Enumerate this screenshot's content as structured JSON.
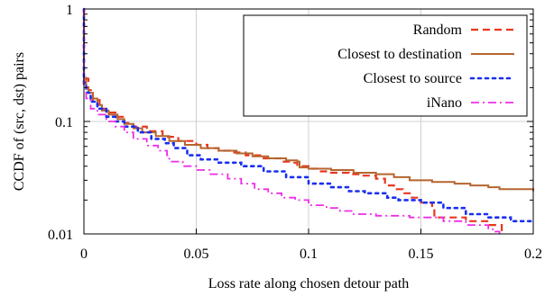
{
  "chart_data": {
    "type": "line",
    "xlabel": "Loss rate along chosen detour path",
    "ylabel": "CCDF of (src, dst) pairs",
    "xlim": [
      0,
      0.2
    ],
    "ylim": [
      0.01,
      1
    ],
    "yscale": "log",
    "grid": true,
    "legend_position": "top-right",
    "x_ticks": [
      {
        "value": 0,
        "label": "0"
      },
      {
        "value": 0.05,
        "label": "0.05"
      },
      {
        "value": 0.1,
        "label": "0.1"
      },
      {
        "value": 0.15,
        "label": "0.15"
      },
      {
        "value": 0.2,
        "label": "0.2"
      }
    ],
    "y_ticks": [
      {
        "value": 0.01,
        "label": "0.01"
      },
      {
        "value": 0.1,
        "label": "0.1"
      },
      {
        "value": 1,
        "label": "1"
      }
    ],
    "series": [
      {
        "name": "Random",
        "color": "#e8371e",
        "dash": "dashed",
        "points": [
          [
            0,
            1
          ],
          [
            0,
            0.26
          ],
          [
            0.001,
            0.24
          ],
          [
            0.002,
            0.19
          ],
          [
            0.004,
            0.155
          ],
          [
            0.007,
            0.13
          ],
          [
            0.01,
            0.12
          ],
          [
            0.014,
            0.11
          ],
          [
            0.018,
            0.097
          ],
          [
            0.022,
            0.09
          ],
          [
            0.028,
            0.082
          ],
          [
            0.035,
            0.073
          ],
          [
            0.042,
            0.067
          ],
          [
            0.05,
            0.062
          ],
          [
            0.055,
            0.058
          ],
          [
            0.06,
            0.055
          ],
          [
            0.066,
            0.053
          ],
          [
            0.072,
            0.05
          ],
          [
            0.08,
            0.047
          ],
          [
            0.088,
            0.044
          ],
          [
            0.092,
            0.043
          ],
          [
            0.095,
            0.04
          ],
          [
            0.1,
            0.038
          ],
          [
            0.104,
            0.036
          ],
          [
            0.11,
            0.035
          ],
          [
            0.118,
            0.034
          ],
          [
            0.124,
            0.033
          ],
          [
            0.13,
            0.031
          ],
          [
            0.134,
            0.027
          ],
          [
            0.138,
            0.025
          ],
          [
            0.142,
            0.023
          ],
          [
            0.146,
            0.021
          ],
          [
            0.15,
            0.019
          ],
          [
            0.155,
            0.017
          ],
          [
            0.156,
            0.014
          ],
          [
            0.162,
            0.014
          ],
          [
            0.17,
            0.013
          ],
          [
            0.18,
            0.012
          ],
          [
            0.186,
            0.01
          ]
        ]
      },
      {
        "name": "Closest to destination",
        "color": "#b5652f",
        "dash": "solid",
        "points": [
          [
            0,
            1
          ],
          [
            0,
            0.24
          ],
          [
            0.001,
            0.2
          ],
          [
            0.002,
            0.18
          ],
          [
            0.004,
            0.16
          ],
          [
            0.006,
            0.14
          ],
          [
            0.008,
            0.125
          ],
          [
            0.011,
            0.115
          ],
          [
            0.015,
            0.105
          ],
          [
            0.018,
            0.095
          ],
          [
            0.022,
            0.087
          ],
          [
            0.026,
            0.08
          ],
          [
            0.032,
            0.074
          ],
          [
            0.038,
            0.067
          ],
          [
            0.045,
            0.062
          ],
          [
            0.052,
            0.058
          ],
          [
            0.06,
            0.055
          ],
          [
            0.068,
            0.052
          ],
          [
            0.075,
            0.049
          ],
          [
            0.082,
            0.047
          ],
          [
            0.09,
            0.045
          ],
          [
            0.095,
            0.044
          ],
          [
            0.096,
            0.039
          ],
          [
            0.1,
            0.038
          ],
          [
            0.11,
            0.037
          ],
          [
            0.12,
            0.035
          ],
          [
            0.13,
            0.034
          ],
          [
            0.138,
            0.032
          ],
          [
            0.145,
            0.03
          ],
          [
            0.155,
            0.029
          ],
          [
            0.165,
            0.028
          ],
          [
            0.172,
            0.027
          ],
          [
            0.18,
            0.026
          ],
          [
            0.185,
            0.025
          ],
          [
            0.2,
            0.024
          ]
        ]
      },
      {
        "name": "Closest to source",
        "color": "#1a2ff0",
        "dash": "dotted",
        "points": [
          [
            0,
            1
          ],
          [
            0,
            0.22
          ],
          [
            0.001,
            0.18
          ],
          [
            0.003,
            0.15
          ],
          [
            0.006,
            0.13
          ],
          [
            0.01,
            0.11
          ],
          [
            0.014,
            0.1
          ],
          [
            0.018,
            0.09
          ],
          [
            0.024,
            0.08
          ],
          [
            0.03,
            0.07
          ],
          [
            0.036,
            0.064
          ],
          [
            0.04,
            0.058
          ],
          [
            0.046,
            0.05
          ],
          [
            0.052,
            0.046
          ],
          [
            0.06,
            0.043
          ],
          [
            0.07,
            0.04
          ],
          [
            0.08,
            0.036
          ],
          [
            0.09,
            0.032
          ],
          [
            0.1,
            0.028
          ],
          [
            0.11,
            0.026
          ],
          [
            0.118,
            0.024
          ],
          [
            0.125,
            0.023
          ],
          [
            0.135,
            0.021
          ],
          [
            0.14,
            0.02
          ],
          [
            0.15,
            0.019
          ],
          [
            0.16,
            0.017
          ],
          [
            0.17,
            0.015
          ],
          [
            0.18,
            0.014
          ],
          [
            0.19,
            0.013
          ],
          [
            0.2,
            0.0125
          ]
        ]
      },
      {
        "name": "iNano",
        "color": "#ee2ee8",
        "dash": "dashdot",
        "points": [
          [
            0,
            1
          ],
          [
            0,
            0.2
          ],
          [
            0.001,
            0.16
          ],
          [
            0.003,
            0.13
          ],
          [
            0.006,
            0.115
          ],
          [
            0.01,
            0.1
          ],
          [
            0.014,
            0.09
          ],
          [
            0.018,
            0.08
          ],
          [
            0.022,
            0.07
          ],
          [
            0.028,
            0.061
          ],
          [
            0.033,
            0.055
          ],
          [
            0.037,
            0.05
          ],
          [
            0.038,
            0.044
          ],
          [
            0.044,
            0.04
          ],
          [
            0.05,
            0.037
          ],
          [
            0.056,
            0.034
          ],
          [
            0.064,
            0.031
          ],
          [
            0.07,
            0.028
          ],
          [
            0.076,
            0.025
          ],
          [
            0.082,
            0.023
          ],
          [
            0.088,
            0.021
          ],
          [
            0.094,
            0.02
          ],
          [
            0.1,
            0.018
          ],
          [
            0.108,
            0.017
          ],
          [
            0.114,
            0.016
          ],
          [
            0.12,
            0.015
          ],
          [
            0.13,
            0.0145
          ],
          [
            0.145,
            0.014
          ],
          [
            0.16,
            0.013
          ],
          [
            0.17,
            0.012
          ],
          [
            0.18,
            0.011
          ],
          [
            0.183,
            0.0105
          ],
          [
            0.185,
            0.01
          ]
        ]
      }
    ]
  }
}
